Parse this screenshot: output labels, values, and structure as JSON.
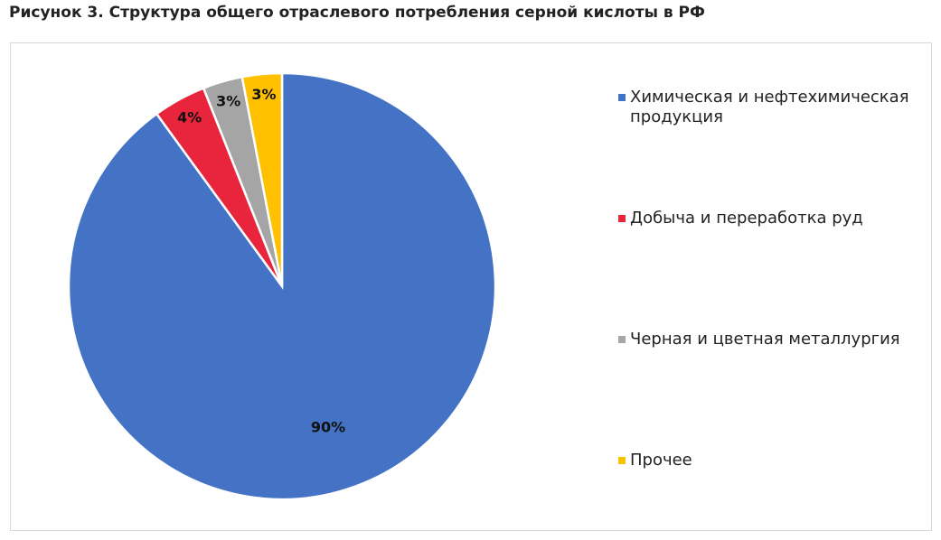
{
  "chart_data": {
    "type": "pie",
    "title": "Рисунок 3. Структура общего отраслевого потребления серной кислоты в РФ",
    "categories": [
      "Химическая и нефтехимическая продукция",
      "Добыча и переработка руд",
      "Черная и цветная металлургия",
      "Прочее"
    ],
    "values": [
      90,
      4,
      3,
      3
    ],
    "value_labels": [
      "90%",
      "4%",
      "3%",
      "3%"
    ],
    "colors": [
      "#4472c4",
      "#e8253c",
      "#a5a5a5",
      "#ffc000"
    ],
    "legend": "right"
  }
}
